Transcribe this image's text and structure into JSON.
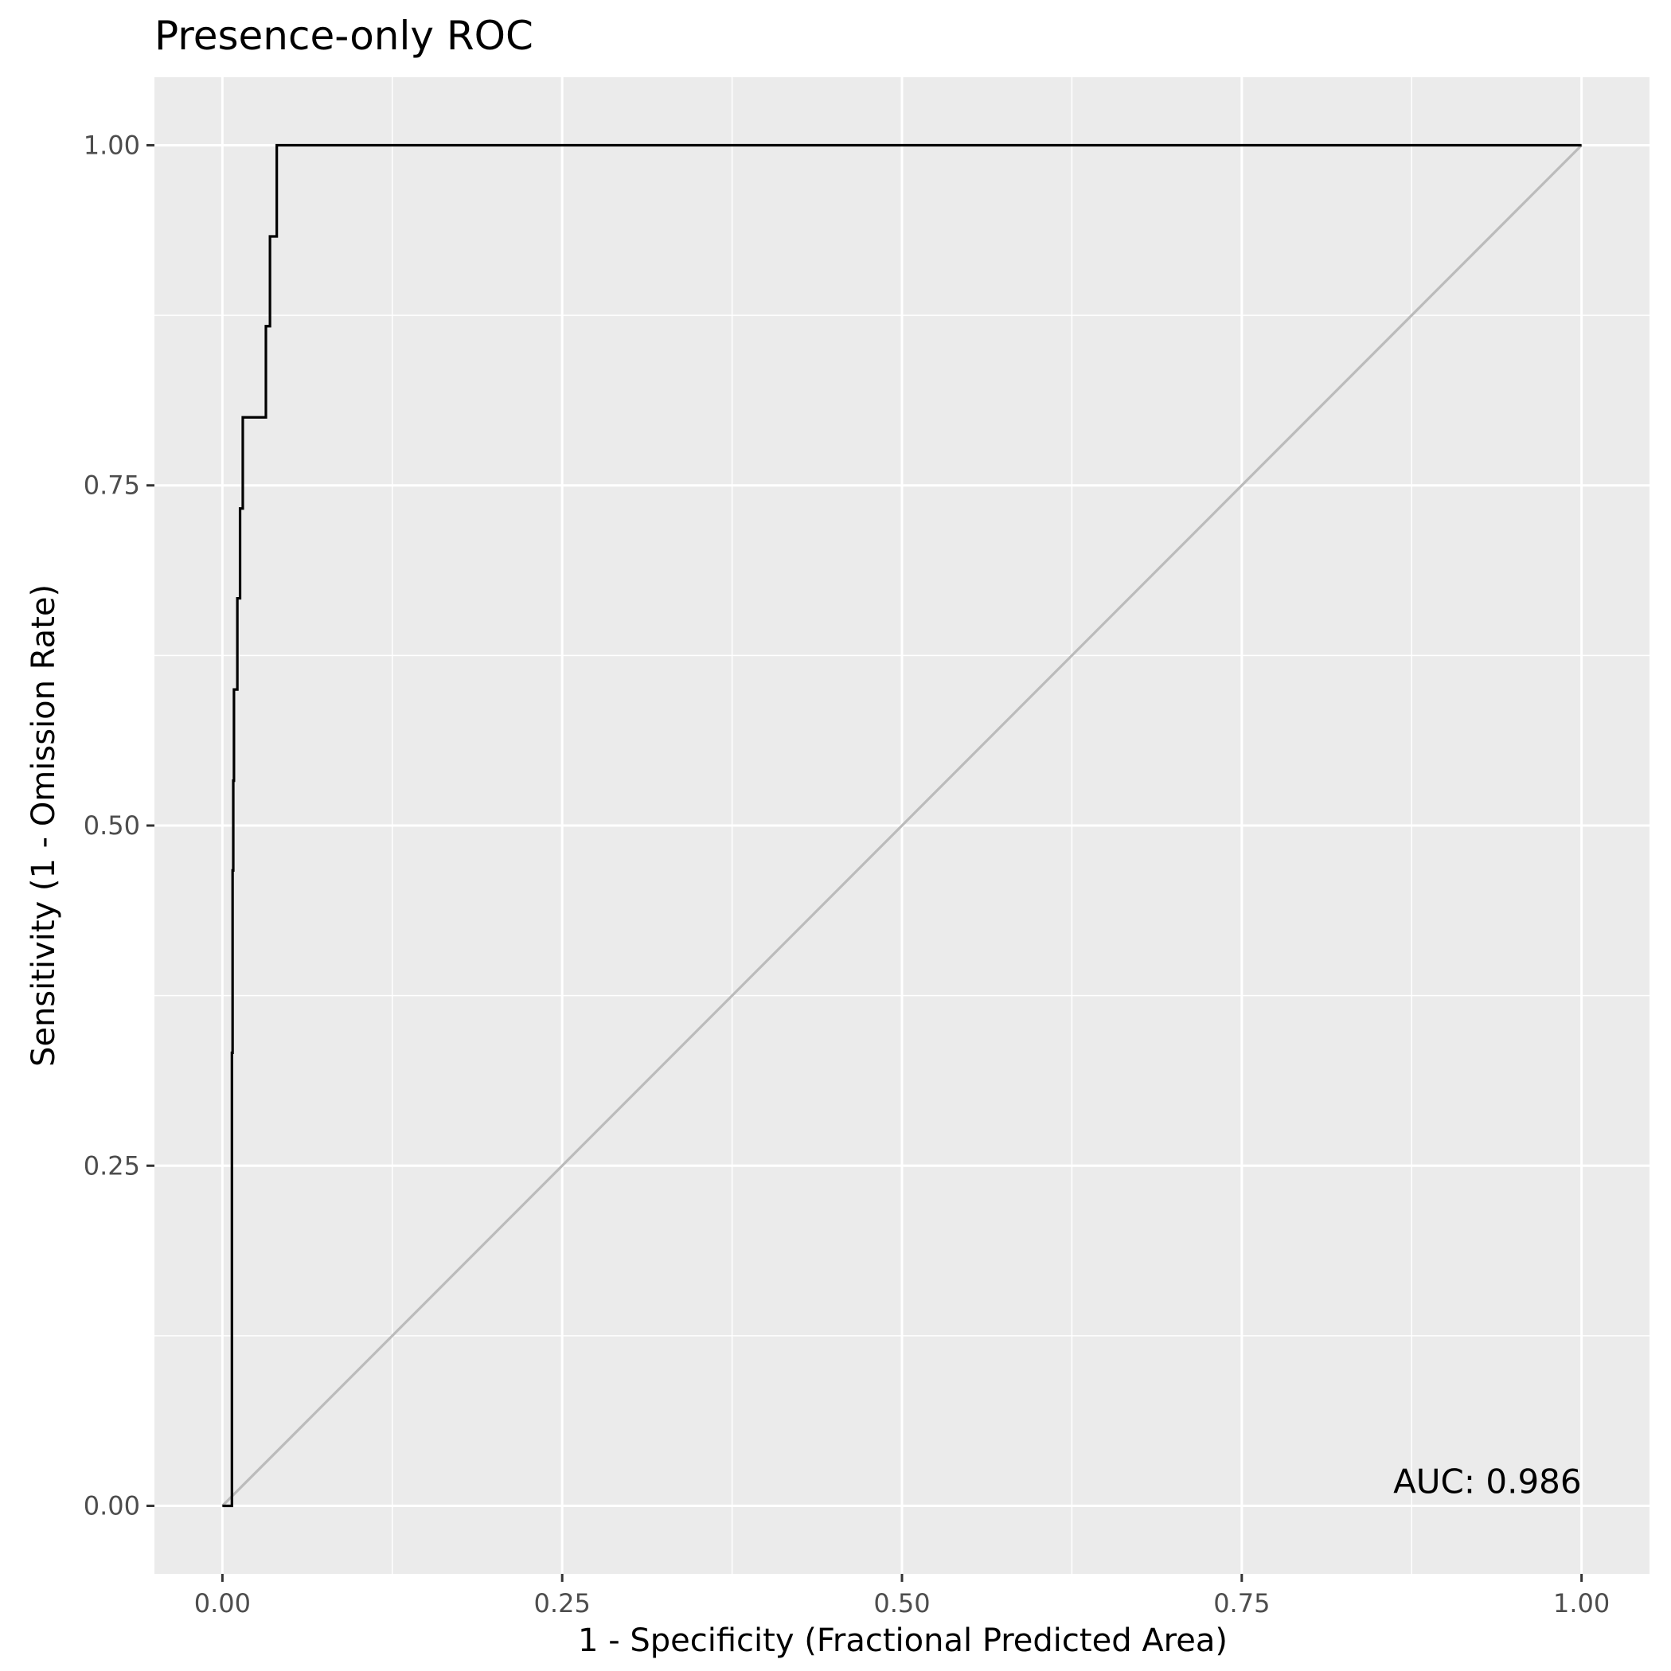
{
  "chart_data": {
    "type": "line",
    "title": "Presence-only ROC",
    "xlabel": "1 - Specificity (Fractional Predicted Area)",
    "ylabel": "Sensitivity (1 - Omission Rate)",
    "xlim": [
      -0.05,
      1.05
    ],
    "ylim": [
      -0.05,
      1.05
    ],
    "x_ticks": [
      "0.00",
      "0.25",
      "0.50",
      "0.75",
      "1.00"
    ],
    "y_ticks": [
      "0.00",
      "0.25",
      "0.50",
      "0.75",
      "1.00"
    ],
    "x_tick_values": [
      0,
      0.25,
      0.5,
      0.75,
      1.0
    ],
    "y_tick_values": [
      0,
      0.25,
      0.5,
      0.75,
      1.0
    ],
    "grid": true,
    "annotation": "AUC: 0.986",
    "colors": {
      "panel": "#ebebeb",
      "grid": "#ffffff",
      "roc_line": "#000000",
      "reference_line": "#bbbbbb"
    },
    "series": [
      {
        "x": [
          0.0,
          0.007,
          0.007,
          0.0075,
          0.0075,
          0.008,
          0.008,
          0.0085,
          0.0085,
          0.011,
          0.011,
          0.013,
          0.013,
          0.015,
          0.015,
          0.032,
          0.032,
          0.035,
          0.035,
          0.04,
          0.04,
          1.0
        ],
        "y": [
          0.0,
          0.0,
          0.333,
          0.333,
          0.467,
          0.467,
          0.533,
          0.533,
          0.6,
          0.6,
          0.667,
          0.667,
          0.733,
          0.733,
          0.8,
          0.8,
          0.867,
          0.867,
          0.933,
          0.933,
          1.0,
          1.0
        ]
      },
      {
        "x": [
          0.0,
          1.0
        ],
        "y": [
          0.0,
          1.0
        ]
      }
    ]
  }
}
